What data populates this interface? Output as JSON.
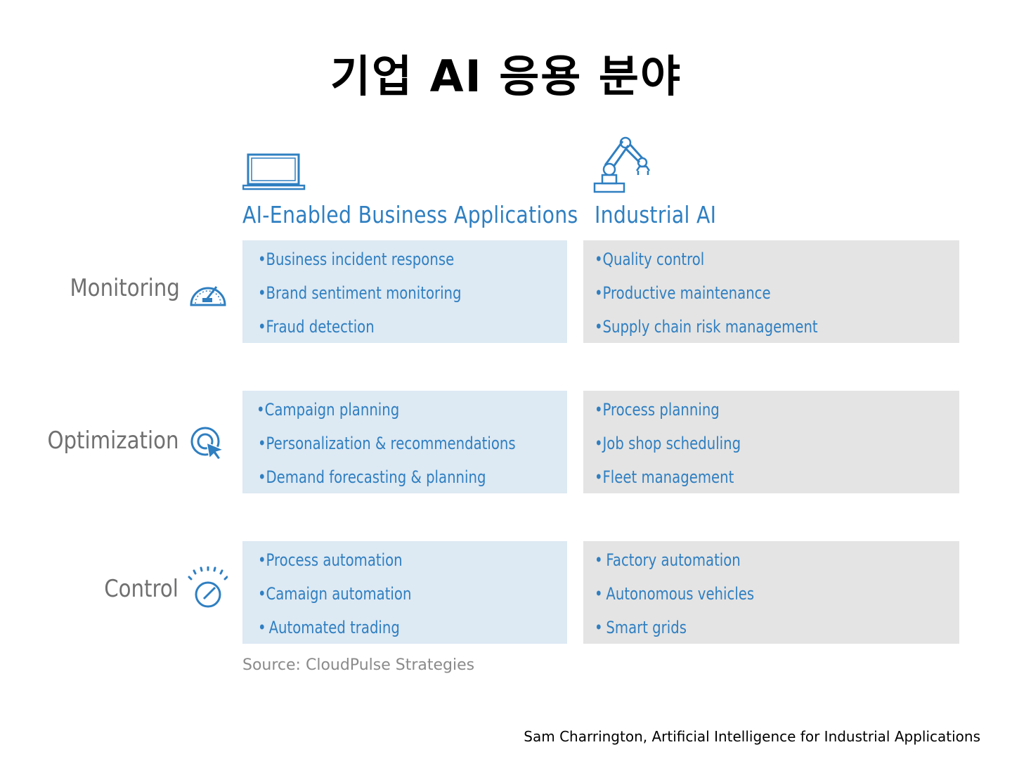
{
  "title": "기업 AI 응용 분야",
  "columns": {
    "business": {
      "heading": "AI-Enabled Business Applications",
      "icon": "laptop-icon"
    },
    "industrial": {
      "heading": "Industrial AI",
      "icon": "robot-arm-icon"
    }
  },
  "rows": [
    {
      "label": "Monitoring",
      "icon": "speedometer-icon",
      "business": [
        "Business incident response",
        "Brand sentiment monitoring",
        "Fraud detection"
      ],
      "industrial": [
        "Quality control",
        "Productive maintenance",
        "Supply chain risk management"
      ]
    },
    {
      "label": "Optimization",
      "icon": "target-cursor-icon",
      "business": [
        "Campaign planning",
        "Personalization & recommendations",
        "Demand forecasting & planning"
      ],
      "industrial": [
        "Process planning",
        "Job shop scheduling",
        "Fleet management"
      ]
    },
    {
      "label": "Control",
      "icon": "gauge-dial-icon",
      "business": [
        "Process automation",
        "Camaign automation",
        "Automated trading"
      ],
      "industrial": [
        "Factory automation",
        "Autonomous vehicles",
        "Smart grids"
      ]
    }
  ],
  "bullet": "•",
  "source": "Source: CloudPulse Strategies",
  "credit": "Sam Charrington, Artificial Intelligence for Industrial Applications",
  "colors": {
    "accent": "#2f7fc1",
    "business_bg": "#dde9f3",
    "industrial_bg": "#e4e4e4",
    "label": "#707070"
  }
}
